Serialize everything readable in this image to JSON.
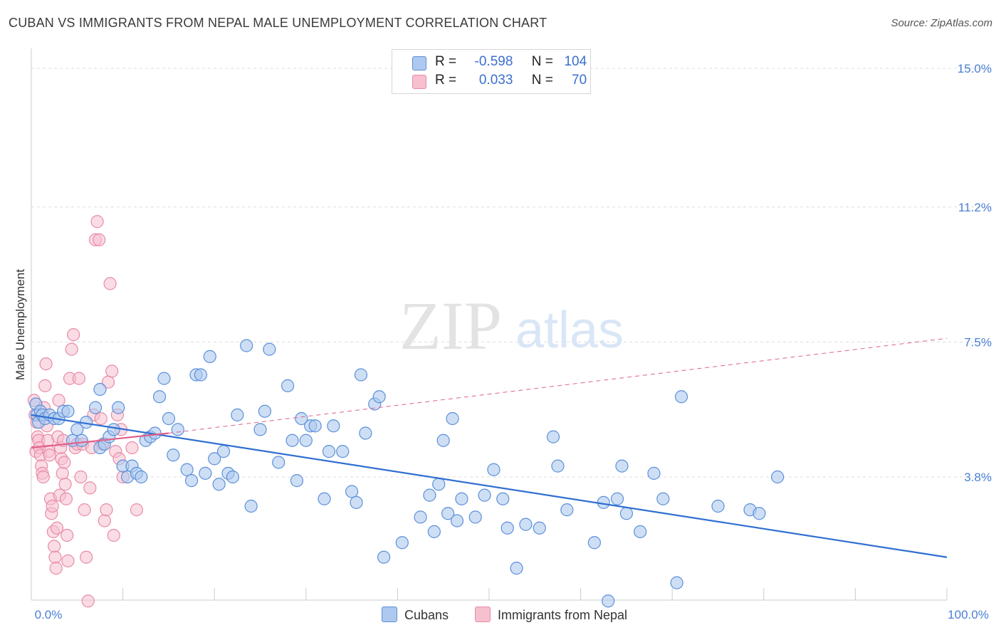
{
  "title": "CUBAN VS IMMIGRANTS FROM NEPAL MALE UNEMPLOYMENT CORRELATION CHART",
  "source": "Source: ZipAtlas.com",
  "watermark": {
    "zip": "ZIP",
    "atlas": "atlas"
  },
  "colors": {
    "blue_fill": "#aec9ef",
    "blue_stroke": "#5b8fd9",
    "blue_line": "#2f6fd1",
    "pink_fill": "#f6c0cf",
    "pink_stroke": "#e98aa6",
    "pink_line": "#e0608a",
    "grid": "#dddddd",
    "tick_text": "#4a7fd4"
  },
  "legend": {
    "rows": [
      {
        "r_label": "R =",
        "r_value": "-0.598",
        "n_label": "N =",
        "n_value": "104"
      },
      {
        "r_label": "R =",
        "r_value": "0.033",
        "n_label": "N =",
        "n_value": "70"
      }
    ]
  },
  "bottom_legend": {
    "cubans": "Cubans",
    "nepal": "Immigrants from Nepal"
  },
  "chart_data": {
    "type": "scatter",
    "ylabel": "Male Unemployment",
    "xlim": [
      0,
      100
    ],
    "ylim": [
      0,
      15.5
    ],
    "y_ticks": [
      {
        "value": 3.8,
        "label": "3.8%"
      },
      {
        "value": 7.5,
        "label": "7.5%"
      },
      {
        "value": 11.2,
        "label": "11.2%"
      },
      {
        "value": 15.0,
        "label": "15.0%"
      }
    ],
    "x_tick_labels": {
      "min": "0.0%",
      "max": "100.0%"
    },
    "series": [
      {
        "name": "Cubans",
        "points": [
          [
            0.5,
            5.8
          ],
          [
            0.6,
            5.5
          ],
          [
            0.8,
            5.3
          ],
          [
            1.0,
            5.6
          ],
          [
            1.2,
            5.5
          ],
          [
            1.5,
            5.4
          ],
          [
            2.0,
            5.5
          ],
          [
            2.5,
            5.4
          ],
          [
            3.0,
            5.4
          ],
          [
            3.5,
            5.6
          ],
          [
            4.0,
            5.6
          ],
          [
            4.5,
            4.8
          ],
          [
            5.0,
            5.1
          ],
          [
            5.5,
            4.8
          ],
          [
            6.0,
            5.3
          ],
          [
            7.0,
            5.7
          ],
          [
            7.5,
            6.2
          ],
          [
            7.5,
            4.6
          ],
          [
            8.0,
            4.7
          ],
          [
            8.5,
            4.9
          ],
          [
            9.0,
            5.1
          ],
          [
            9.5,
            5.7
          ],
          [
            10.0,
            4.1
          ],
          [
            10.5,
            3.8
          ],
          [
            11.0,
            4.1
          ],
          [
            11.5,
            3.9
          ],
          [
            12.0,
            3.8
          ],
          [
            12.5,
            4.8
          ],
          [
            13.0,
            4.9
          ],
          [
            13.5,
            5.0
          ],
          [
            14.0,
            6.0
          ],
          [
            14.5,
            6.5
          ],
          [
            15.0,
            5.4
          ],
          [
            15.5,
            4.4
          ],
          [
            16.0,
            5.1
          ],
          [
            17.0,
            4.0
          ],
          [
            17.5,
            3.7
          ],
          [
            18.0,
            6.6
          ],
          [
            18.5,
            6.6
          ],
          [
            19.0,
            3.9
          ],
          [
            19.5,
            7.1
          ],
          [
            20.0,
            4.3
          ],
          [
            20.5,
            3.6
          ],
          [
            21.0,
            4.5
          ],
          [
            21.5,
            3.9
          ],
          [
            22.0,
            3.8
          ],
          [
            22.5,
            5.5
          ],
          [
            23.5,
            7.4
          ],
          [
            24.0,
            3.0
          ],
          [
            25.0,
            5.1
          ],
          [
            25.5,
            5.6
          ],
          [
            26.0,
            7.3
          ],
          [
            27.0,
            4.2
          ],
          [
            28.0,
            6.3
          ],
          [
            28.5,
            4.8
          ],
          [
            29.0,
            3.7
          ],
          [
            29.5,
            5.4
          ],
          [
            30.0,
            4.8
          ],
          [
            30.5,
            5.2
          ],
          [
            31.0,
            5.2
          ],
          [
            32.0,
            3.2
          ],
          [
            32.5,
            4.5
          ],
          [
            33.0,
            5.2
          ],
          [
            34.0,
            4.5
          ],
          [
            35.0,
            3.4
          ],
          [
            35.5,
            3.1
          ],
          [
            36.0,
            6.6
          ],
          [
            36.5,
            5.0
          ],
          [
            37.5,
            5.8
          ],
          [
            38.0,
            6.0
          ],
          [
            38.5,
            1.6
          ],
          [
            40.5,
            2.0
          ],
          [
            42.5,
            2.7
          ],
          [
            43.5,
            3.3
          ],
          [
            44.0,
            2.3
          ],
          [
            44.5,
            3.6
          ],
          [
            45.0,
            4.8
          ],
          [
            45.5,
            2.8
          ],
          [
            46.0,
            5.4
          ],
          [
            46.5,
            2.6
          ],
          [
            47.0,
            3.2
          ],
          [
            48.5,
            2.7
          ],
          [
            49.5,
            3.3
          ],
          [
            50.5,
            4.0
          ],
          [
            51.5,
            3.2
          ],
          [
            52.0,
            2.4
          ],
          [
            53.0,
            1.3
          ],
          [
            54.0,
            2.5
          ],
          [
            55.5,
            2.4
          ],
          [
            57.0,
            4.9
          ],
          [
            57.5,
            4.1
          ],
          [
            58.5,
            2.9
          ],
          [
            61.5,
            2.0
          ],
          [
            62.5,
            3.1
          ],
          [
            63.0,
            0.4
          ],
          [
            64.0,
            3.2
          ],
          [
            64.5,
            4.1
          ],
          [
            65.0,
            2.8
          ],
          [
            66.5,
            2.3
          ],
          [
            68.0,
            3.9
          ],
          [
            69.0,
            3.2
          ],
          [
            70.5,
            0.9
          ],
          [
            71.0,
            6.0
          ],
          [
            75.0,
            3.0
          ],
          [
            78.5,
            2.9
          ],
          [
            79.5,
            2.8
          ],
          [
            81.5,
            3.8
          ]
        ]
      },
      {
        "name": "Immigrants from Nepal",
        "points": [
          [
            0.3,
            5.9
          ],
          [
            0.4,
            5.5
          ],
          [
            0.5,
            4.5
          ],
          [
            0.6,
            5.3
          ],
          [
            0.7,
            4.9
          ],
          [
            0.8,
            4.8
          ],
          [
            0.9,
            4.6
          ],
          [
            1.0,
            4.4
          ],
          [
            1.1,
            4.1
          ],
          [
            1.2,
            3.9
          ],
          [
            1.3,
            3.8
          ],
          [
            1.4,
            5.7
          ],
          [
            1.5,
            6.3
          ],
          [
            1.6,
            6.9
          ],
          [
            1.7,
            5.2
          ],
          [
            1.8,
            4.8
          ],
          [
            1.9,
            4.5
          ],
          [
            2.0,
            4.4
          ],
          [
            2.1,
            3.2
          ],
          [
            2.2,
            2.8
          ],
          [
            2.3,
            3.0
          ],
          [
            2.4,
            2.3
          ],
          [
            2.5,
            1.9
          ],
          [
            2.6,
            1.6
          ],
          [
            2.7,
            1.3
          ],
          [
            2.8,
            2.4
          ],
          [
            2.9,
            4.9
          ],
          [
            3.0,
            5.9
          ],
          [
            3.1,
            3.3
          ],
          [
            3.2,
            4.6
          ],
          [
            3.3,
            4.3
          ],
          [
            3.4,
            3.9
          ],
          [
            3.5,
            4.8
          ],
          [
            3.6,
            4.2
          ],
          [
            3.7,
            3.6
          ],
          [
            3.8,
            3.2
          ],
          [
            3.9,
            2.2
          ],
          [
            4.0,
            1.5
          ],
          [
            4.2,
            6.5
          ],
          [
            4.4,
            7.3
          ],
          [
            4.6,
            7.7
          ],
          [
            4.8,
            4.6
          ],
          [
            5.0,
            4.7
          ],
          [
            5.2,
            6.5
          ],
          [
            5.4,
            3.8
          ],
          [
            5.6,
            4.7
          ],
          [
            5.8,
            2.9
          ],
          [
            6.0,
            1.6
          ],
          [
            6.2,
            0.4
          ],
          [
            6.4,
            3.5
          ],
          [
            6.6,
            4.6
          ],
          [
            6.8,
            5.5
          ],
          [
            7.0,
            10.3
          ],
          [
            7.2,
            10.8
          ],
          [
            7.4,
            10.3
          ],
          [
            7.6,
            5.4
          ],
          [
            7.8,
            4.7
          ],
          [
            8.0,
            2.6
          ],
          [
            8.2,
            2.9
          ],
          [
            8.4,
            6.4
          ],
          [
            8.6,
            9.1
          ],
          [
            8.8,
            6.7
          ],
          [
            9.0,
            2.2
          ],
          [
            9.2,
            4.5
          ],
          [
            9.4,
            5.5
          ],
          [
            9.6,
            4.3
          ],
          [
            9.8,
            5.1
          ],
          [
            10.0,
            3.8
          ],
          [
            11.0,
            4.6
          ],
          [
            11.5,
            2.9
          ]
        ]
      }
    ],
    "trend_lines": [
      {
        "series": "Cubans",
        "x": [
          0,
          100
        ],
        "y": [
          5.5,
          1.6
        ],
        "style": "solid"
      },
      {
        "series": "Immigrants from Nepal",
        "x": [
          0,
          15
        ],
        "y": [
          4.6,
          5.0
        ],
        "style": "solid"
      },
      {
        "series": "Immigrants from Nepal",
        "x": [
          15,
          100
        ],
        "y": [
          5.0,
          7.6
        ],
        "style": "dashed"
      }
    ],
    "grid": true
  }
}
